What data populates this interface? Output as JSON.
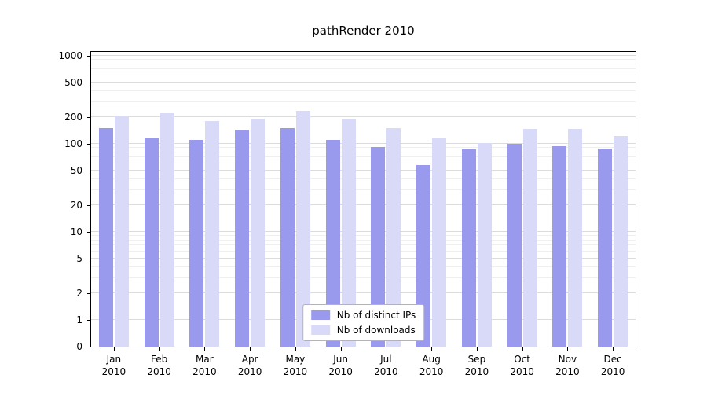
{
  "chart_data": {
    "type": "bar",
    "title": "pathRender 2010",
    "yscale": "symlog",
    "ylim": [
      0,
      1000
    ],
    "yticks": [
      0,
      1,
      2,
      5,
      10,
      20,
      50,
      100,
      200,
      500,
      1000
    ],
    "grid": true,
    "legend_position": "lower-center-inside",
    "categories": [
      "Jan 2010",
      "Feb 2010",
      "Mar 2010",
      "Apr 2010",
      "May 2010",
      "Jun 2010",
      "Jul 2010",
      "Aug 2010",
      "Sep 2010",
      "Oct 2010",
      "Nov 2010",
      "Dec 2010"
    ],
    "series": [
      {
        "name": "Nb of distinct IPs",
        "color": "#9999ed",
        "values": [
          150,
          115,
          112,
          145,
          150,
          110,
          92,
          57,
          86,
          100,
          95,
          89
        ]
      },
      {
        "name": "Nb of downloads",
        "color": "#d9d9f8",
        "values": [
          210,
          225,
          180,
          195,
          235,
          188,
          150,
          115,
          103,
          148,
          148,
          122
        ]
      }
    ]
  }
}
